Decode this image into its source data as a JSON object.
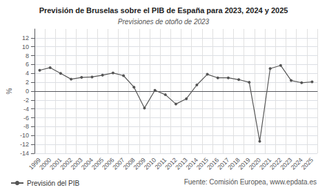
{
  "chart_data": {
    "type": "line",
    "title": "Previsión de Bruselas sobre el PIB de España para 2023, 2024 y 2025",
    "subtitle": "Previsiones de otoño de 2023",
    "source": "Fuente: Comisión Europea, www.epdata.es",
    "y_label": "%",
    "categories": [
      "1999",
      "2000",
      "2001",
      "2002",
      "2003",
      "2004",
      "2005",
      "2006",
      "2007",
      "2008",
      "2009",
      "2010",
      "2011",
      "2012",
      "2013",
      "2014",
      "2015",
      "2016",
      "2017",
      "2018",
      "2019",
      "2020",
      "2021",
      "2022",
      "2023",
      "2024",
      "2025"
    ],
    "series": [
      {
        "name": "Previsión del PIB",
        "color": "#555555",
        "marker": "circle",
        "values": [
          4.7,
          5.3,
          4.0,
          2.7,
          3.1,
          3.2,
          3.6,
          4.1,
          3.5,
          0.9,
          -3.8,
          0.2,
          -0.8,
          -2.9,
          -1.7,
          1.4,
          3.8,
          3.0,
          3.0,
          2.6,
          2.0,
          -11.3,
          5.1,
          5.8,
          2.4,
          1.9,
          2.1
        ]
      }
    ],
    "ylim": [
      -14,
      14
    ],
    "yticks": [
      -14,
      -12,
      -10,
      -8,
      -6,
      -4,
      -2,
      0,
      2,
      4,
      6,
      8,
      10,
      12
    ],
    "grid": true,
    "legend": "bottom"
  }
}
